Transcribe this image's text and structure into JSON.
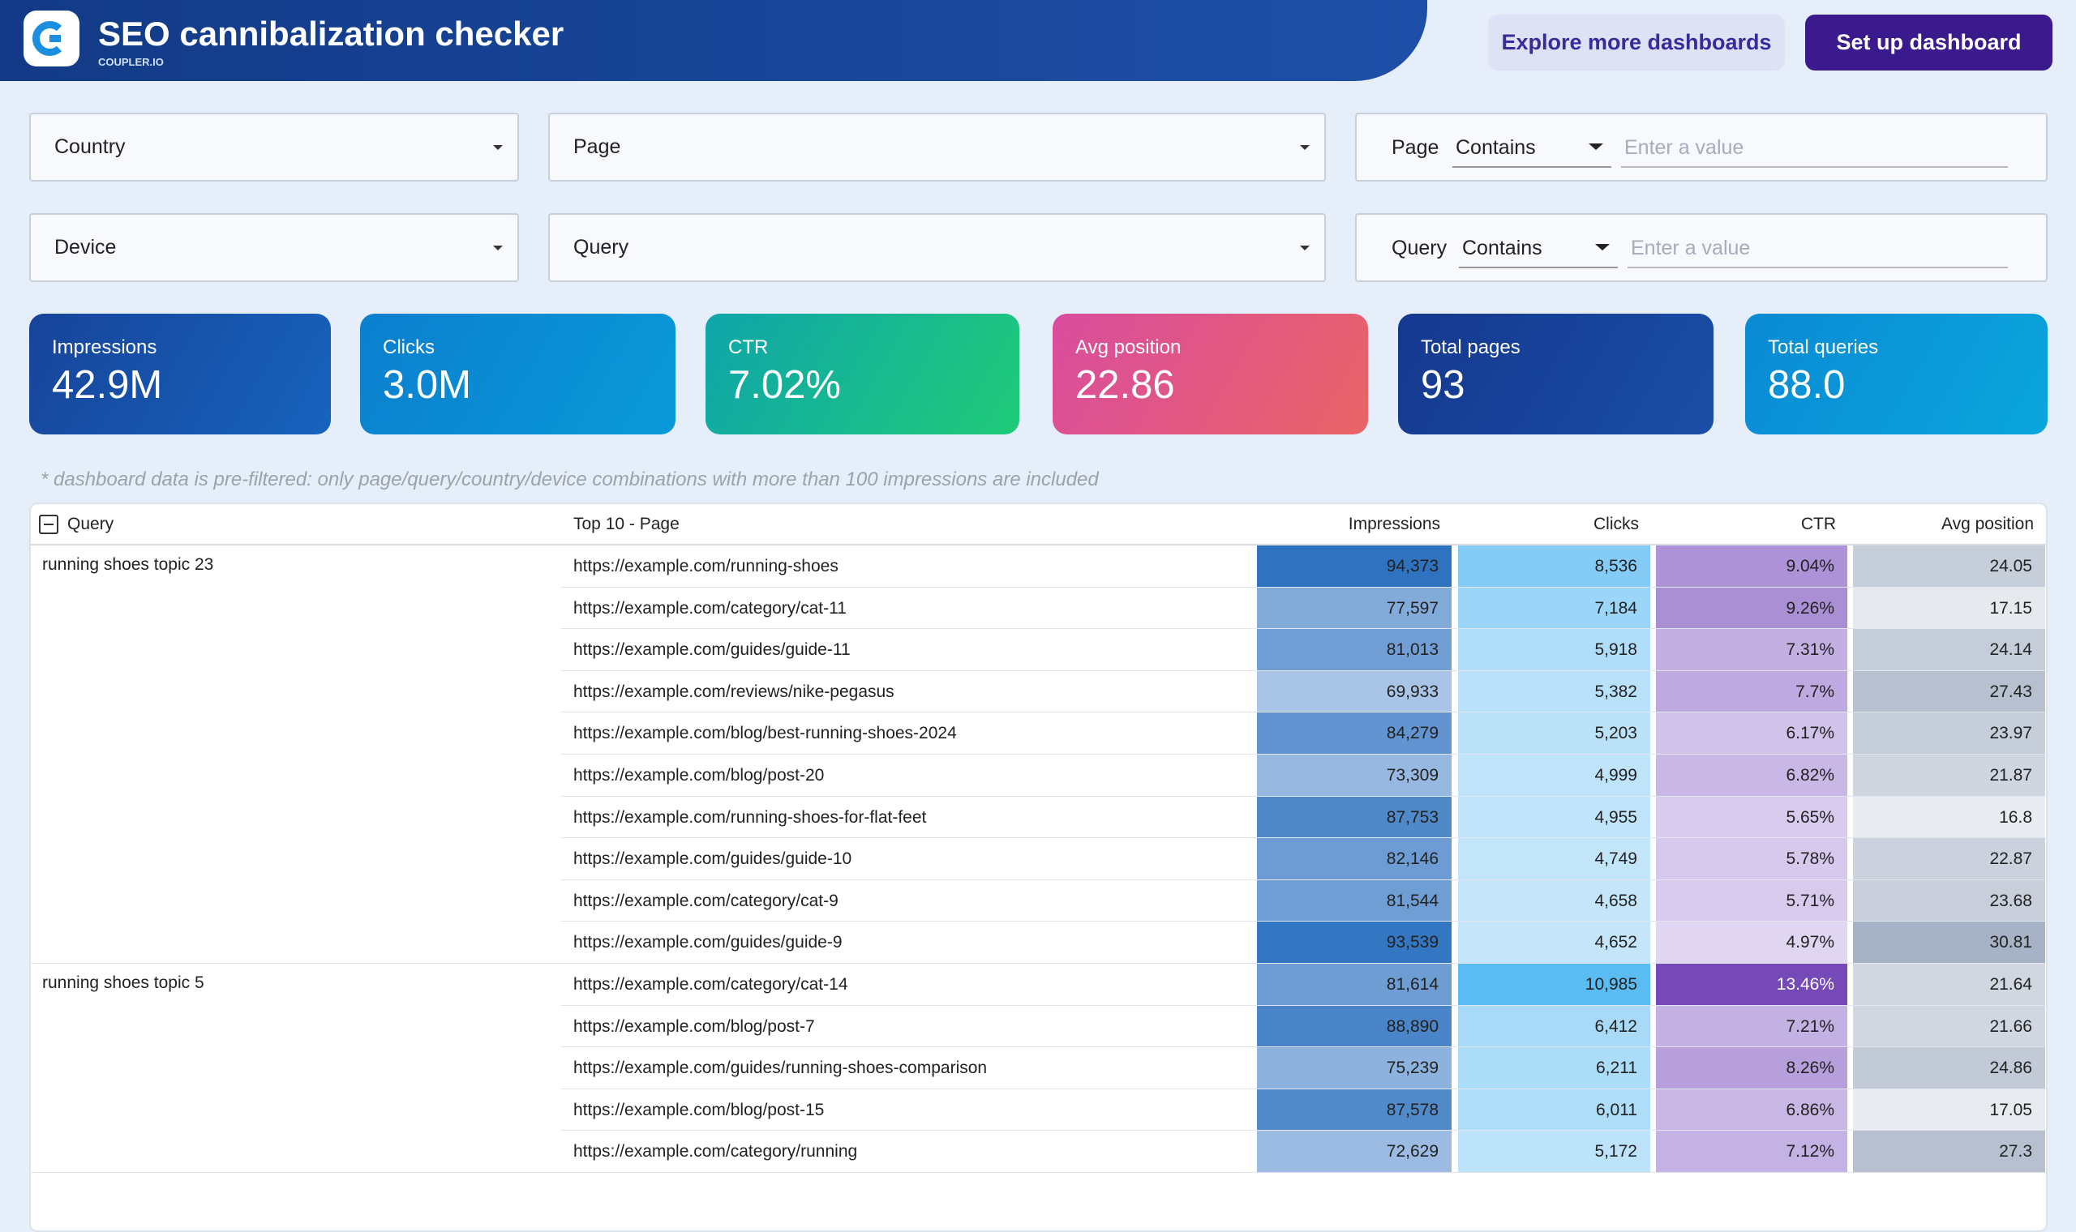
{
  "header": {
    "title": "SEO cannibalization checker",
    "brand": "COUPLER.IO",
    "buttons": [
      "Explore more dashboards",
      "Set up dashboard"
    ]
  },
  "filters": {
    "dropdowns": [
      "Country",
      "Page",
      "Device",
      "Query"
    ],
    "text_filters": [
      {
        "field": "Page",
        "operator": "Contains",
        "placeholder": "Enter a value"
      },
      {
        "field": "Query",
        "operator": "Contains",
        "placeholder": "Enter a value"
      }
    ]
  },
  "kpis": [
    {
      "label": "Impressions",
      "value": "42.9M"
    },
    {
      "label": "Clicks",
      "value": "3.0M"
    },
    {
      "label": "CTR",
      "value": "7.02%"
    },
    {
      "label": "Avg position",
      "value": "22.86"
    },
    {
      "label": "Total pages",
      "value": "93"
    },
    {
      "label": "Total queries",
      "value": "88.0"
    }
  ],
  "note": "* dashboard data is pre-filtered: only page/query/country/device combinations with more than 100 impressions are included",
  "table": {
    "columns": [
      "Query",
      "Top 10 - Page",
      "Impressions",
      "Clicks",
      "CTR",
      "Avg position"
    ],
    "groups": [
      {
        "query": "running shoes topic 23",
        "rows": [
          [
            "https://example.com/running-shoes",
            "94,373",
            "8,536",
            "9.04%",
            "24.05"
          ],
          [
            "https://example.com/category/cat-11",
            "77,597",
            "7,184",
            "9.26%",
            "17.15"
          ],
          [
            "https://example.com/guides/guide-11",
            "81,013",
            "5,918",
            "7.31%",
            "24.14"
          ],
          [
            "https://example.com/reviews/nike-pegasus",
            "69,933",
            "5,382",
            "7.7%",
            "27.43"
          ],
          [
            "https://example.com/blog/best-running-shoes-2024",
            "84,279",
            "5,203",
            "6.17%",
            "23.97"
          ],
          [
            "https://example.com/blog/post-20",
            "73,309",
            "4,999",
            "6.82%",
            "21.87"
          ],
          [
            "https://example.com/running-shoes-for-flat-feet",
            "87,753",
            "4,955",
            "5.65%",
            "16.8"
          ],
          [
            "https://example.com/guides/guide-10",
            "82,146",
            "4,749",
            "5.78%",
            "22.87"
          ],
          [
            "https://example.com/category/cat-9",
            "81,544",
            "4,658",
            "5.71%",
            "23.68"
          ],
          [
            "https://example.com/guides/guide-9",
            "93,539",
            "4,652",
            "4.97%",
            "30.81"
          ]
        ]
      },
      {
        "query": "running shoes topic 5",
        "rows": [
          [
            "https://example.com/category/cat-14",
            "81,614",
            "10,985",
            "13.46%",
            "21.64"
          ],
          [
            "https://example.com/blog/post-7",
            "88,890",
            "6,412",
            "7.21%",
            "21.66"
          ],
          [
            "https://example.com/guides/running-shoes-comparison",
            "75,239",
            "6,211",
            "8.26%",
            "24.86"
          ],
          [
            "https://example.com/blog/post-15",
            "87,578",
            "6,011",
            "6.86%",
            "17.05"
          ],
          [
            "https://example.com/category/running",
            "72,629",
            "5,172",
            "7.12%",
            "27.3"
          ]
        ]
      }
    ]
  }
}
